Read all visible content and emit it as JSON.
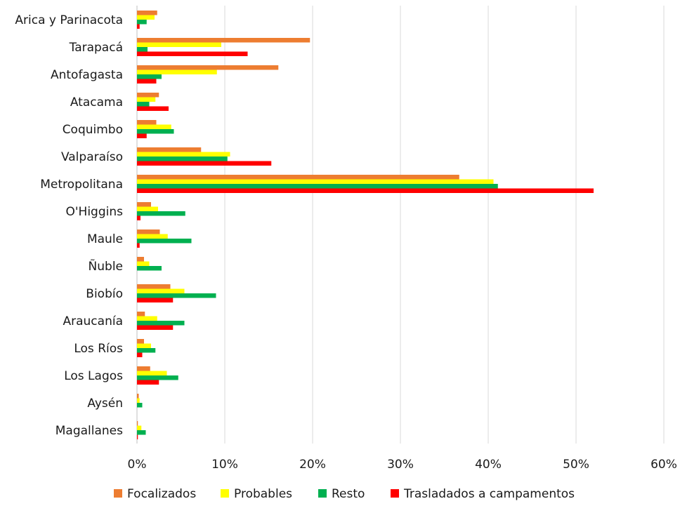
{
  "chart_data": {
    "type": "bar",
    "orientation": "horizontal",
    "categories": [
      "Arica y Parinacota",
      "Tarapacá",
      "Antofagasta",
      "Atacama",
      "Coquimbo",
      "Valparaíso",
      "Metropolitana",
      "O'Higgins",
      "Maule",
      "Ñuble",
      "Biobío",
      "Araucanía",
      "Los Ríos",
      "Los Lagos",
      "Aysén",
      "Magallanes"
    ],
    "series": [
      {
        "name": "Focalizados",
        "color": "#ED7D31",
        "values": [
          2.3,
          19.7,
          16.1,
          2.5,
          2.2,
          7.3,
          36.7,
          1.6,
          2.6,
          0.8,
          3.8,
          0.9,
          0.8,
          1.5,
          0.2,
          0.1
        ]
      },
      {
        "name": "Probables",
        "color": "#FFFF00",
        "values": [
          2.0,
          9.6,
          9.1,
          2.1,
          3.9,
          10.6,
          40.6,
          2.4,
          3.5,
          1.4,
          5.4,
          2.3,
          1.6,
          3.4,
          0.3,
          0.5
        ]
      },
      {
        "name": "Resto",
        "color": "#00B050",
        "values": [
          1.1,
          1.2,
          2.8,
          1.4,
          4.2,
          10.3,
          41.1,
          5.5,
          6.2,
          2.8,
          9.0,
          5.4,
          2.1,
          4.7,
          0.6,
          1.0
        ]
      },
      {
        "name": "Trasladados a campamentos",
        "color": "#FF0000",
        "values": [
          0.3,
          12.6,
          2.2,
          3.6,
          1.1,
          15.3,
          52.0,
          0.4,
          0.3,
          0.0,
          4.1,
          4.1,
          0.6,
          2.5,
          0.0,
          0.1
        ]
      }
    ],
    "xlim": [
      0,
      60
    ],
    "x_ticks": [
      "0%",
      "10%",
      "20%",
      "30%",
      "40%",
      "50%",
      "60%"
    ],
    "tick_values": [
      0,
      10,
      20,
      30,
      40,
      50,
      60
    ],
    "grid": true,
    "legend_position": "bottom"
  }
}
